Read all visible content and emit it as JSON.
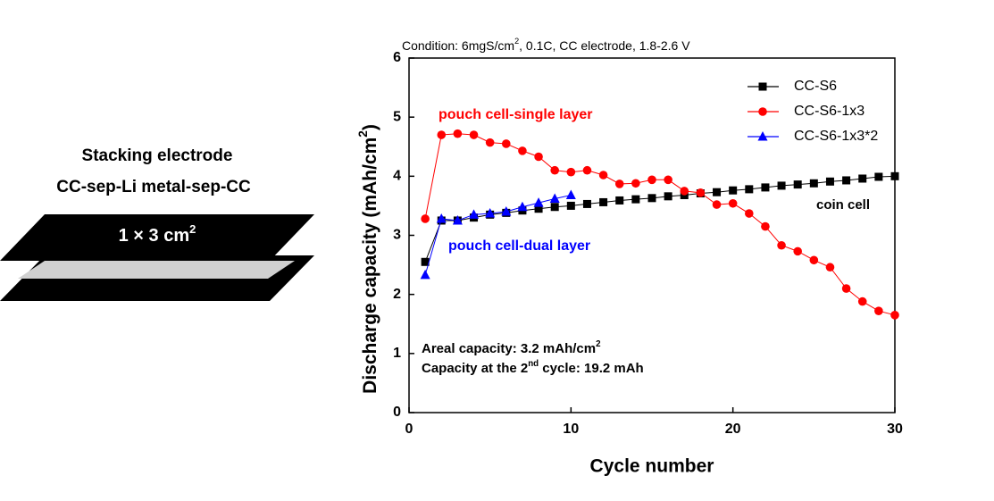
{
  "diagram": {
    "title": "Stacking electrode",
    "subtitle": "CC-sep-Li metal-sep-CC",
    "size_label": [
      "1 × 3 cm",
      "2"
    ]
  },
  "chart_data": {
    "type": "line",
    "subtitle": [
      "Condition: 6mgS/cm",
      "2",
      ", 0.1C, CC electrode, 1.8-2.6 V"
    ],
    "x_label": "Cycle number",
    "y_label": [
      "Discharge capacity (mAh/cm",
      "2",
      ")"
    ],
    "xlim": [
      0,
      30
    ],
    "xticks": [
      0,
      10,
      20,
      30
    ],
    "ylim": [
      0,
      6
    ],
    "yticks": [
      0,
      1,
      2,
      3,
      4,
      5,
      6
    ],
    "legend": "upper right",
    "series": [
      {
        "name": "CC-S6",
        "color": "#000000",
        "marker": "square",
        "x": [
          1,
          2,
          3,
          4,
          5,
          6,
          7,
          8,
          9,
          10,
          11,
          12,
          13,
          14,
          15,
          16,
          17,
          18,
          19,
          20,
          21,
          22,
          23,
          24,
          25,
          26,
          27,
          28,
          29,
          30
        ],
        "values": [
          2.55,
          3.25,
          3.25,
          3.3,
          3.35,
          3.38,
          3.42,
          3.45,
          3.48,
          3.5,
          3.53,
          3.56,
          3.59,
          3.61,
          3.63,
          3.66,
          3.68,
          3.71,
          3.73,
          3.76,
          3.78,
          3.81,
          3.84,
          3.86,
          3.88,
          3.91,
          3.93,
          3.96,
          3.99,
          4.0
        ]
      },
      {
        "name": "CC-S6-1x3",
        "color": "#ff0000",
        "marker": "circle",
        "x": [
          1,
          2,
          3,
          4,
          5,
          6,
          7,
          8,
          9,
          10,
          11,
          12,
          13,
          14,
          15,
          16,
          17,
          18,
          19,
          20,
          21,
          22,
          23,
          24,
          25,
          26,
          27,
          28,
          29,
          30
        ],
        "values": [
          3.28,
          4.7,
          4.72,
          4.7,
          4.57,
          4.55,
          4.43,
          4.33,
          4.1,
          4.07,
          4.1,
          4.02,
          3.87,
          3.88,
          3.94,
          3.94,
          3.75,
          3.72,
          3.52,
          3.54,
          3.37,
          3.15,
          2.83,
          2.73,
          2.58,
          2.46,
          2.1,
          1.88,
          1.72,
          1.65
        ]
      },
      {
        "name": "CC-S6-1x3*2",
        "color": "#0000ff",
        "marker": "triangle",
        "x": [
          1,
          2,
          3,
          4,
          5,
          6,
          7,
          8,
          9,
          10
        ],
        "values": [
          2.33,
          3.28,
          3.25,
          3.35,
          3.37,
          3.4,
          3.48,
          3.55,
          3.62,
          3.68
        ]
      }
    ],
    "annotations": [
      {
        "text": [
          "pouch cell-single layer"
        ],
        "color": "#ff0000"
      },
      {
        "text": [
          "pouch cell-dual layer"
        ],
        "color": "#0000ff"
      },
      {
        "text": [
          "coin cell"
        ],
        "color": "#000000"
      },
      {
        "text": [
          "Areal capacity: 3.2 mAh/cm",
          "2"
        ],
        "color": "#000000"
      },
      {
        "text": [
          "Capacity at the 2",
          "nd",
          " cycle:  19.2 mAh"
        ],
        "color": "#000000"
      }
    ]
  }
}
